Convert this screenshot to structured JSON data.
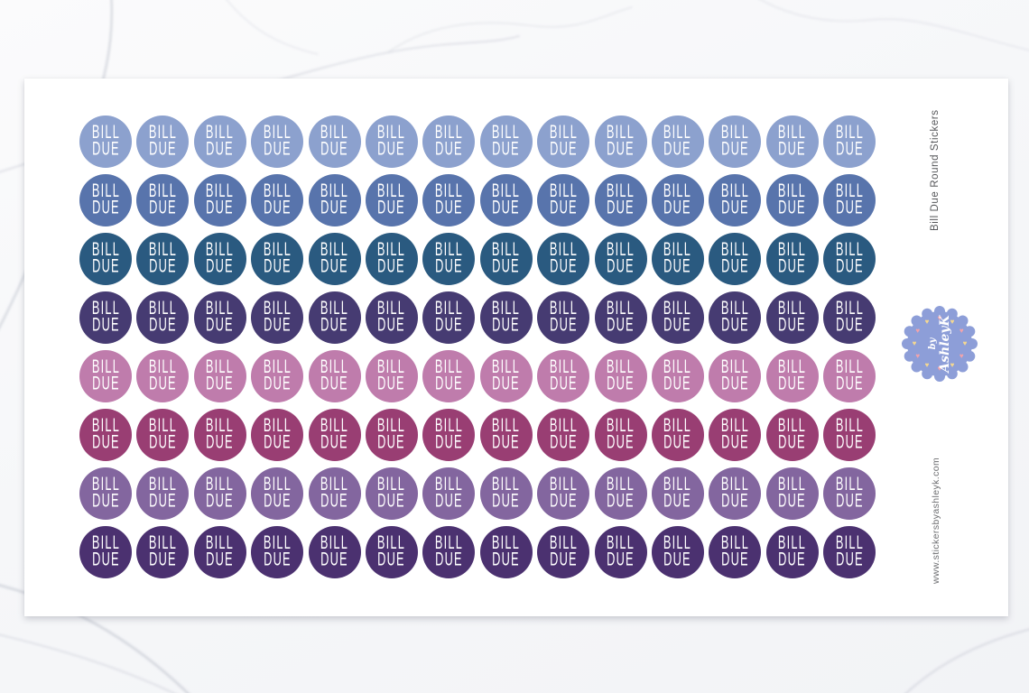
{
  "sheet": {
    "product_title": "Bill Due Round Stickers",
    "website": "www.stickersbyashleyk.com",
    "sticker": {
      "line1": "BILL",
      "line2": "DUE",
      "text_color": "#ffffff"
    },
    "grid": {
      "rows": 8,
      "columns": 14
    },
    "row_colors": [
      {
        "row": 1,
        "name": "light-periwinkle",
        "hex": "#8ca1ce"
      },
      {
        "row": 2,
        "name": "denim-blue",
        "hex": "#5874ac"
      },
      {
        "row": 3,
        "name": "dark-teal-blue",
        "hex": "#2a5a80"
      },
      {
        "row": 4,
        "name": "indigo",
        "hex": "#463b72"
      },
      {
        "row": 5,
        "name": "orchid-pink",
        "hex": "#bf7cac"
      },
      {
        "row": 6,
        "name": "plum",
        "hex": "#993e73"
      },
      {
        "row": 7,
        "name": "amethyst-purple",
        "hex": "#83669f"
      },
      {
        "row": 8,
        "name": "dark-purple",
        "hex": "#4b3170"
      }
    ],
    "brand": {
      "by_label": "by",
      "name": "AshleyK",
      "badge_color": "#8d9ed8",
      "heart_colors": [
        "#f2a3ab",
        "#f5d890"
      ]
    }
  }
}
